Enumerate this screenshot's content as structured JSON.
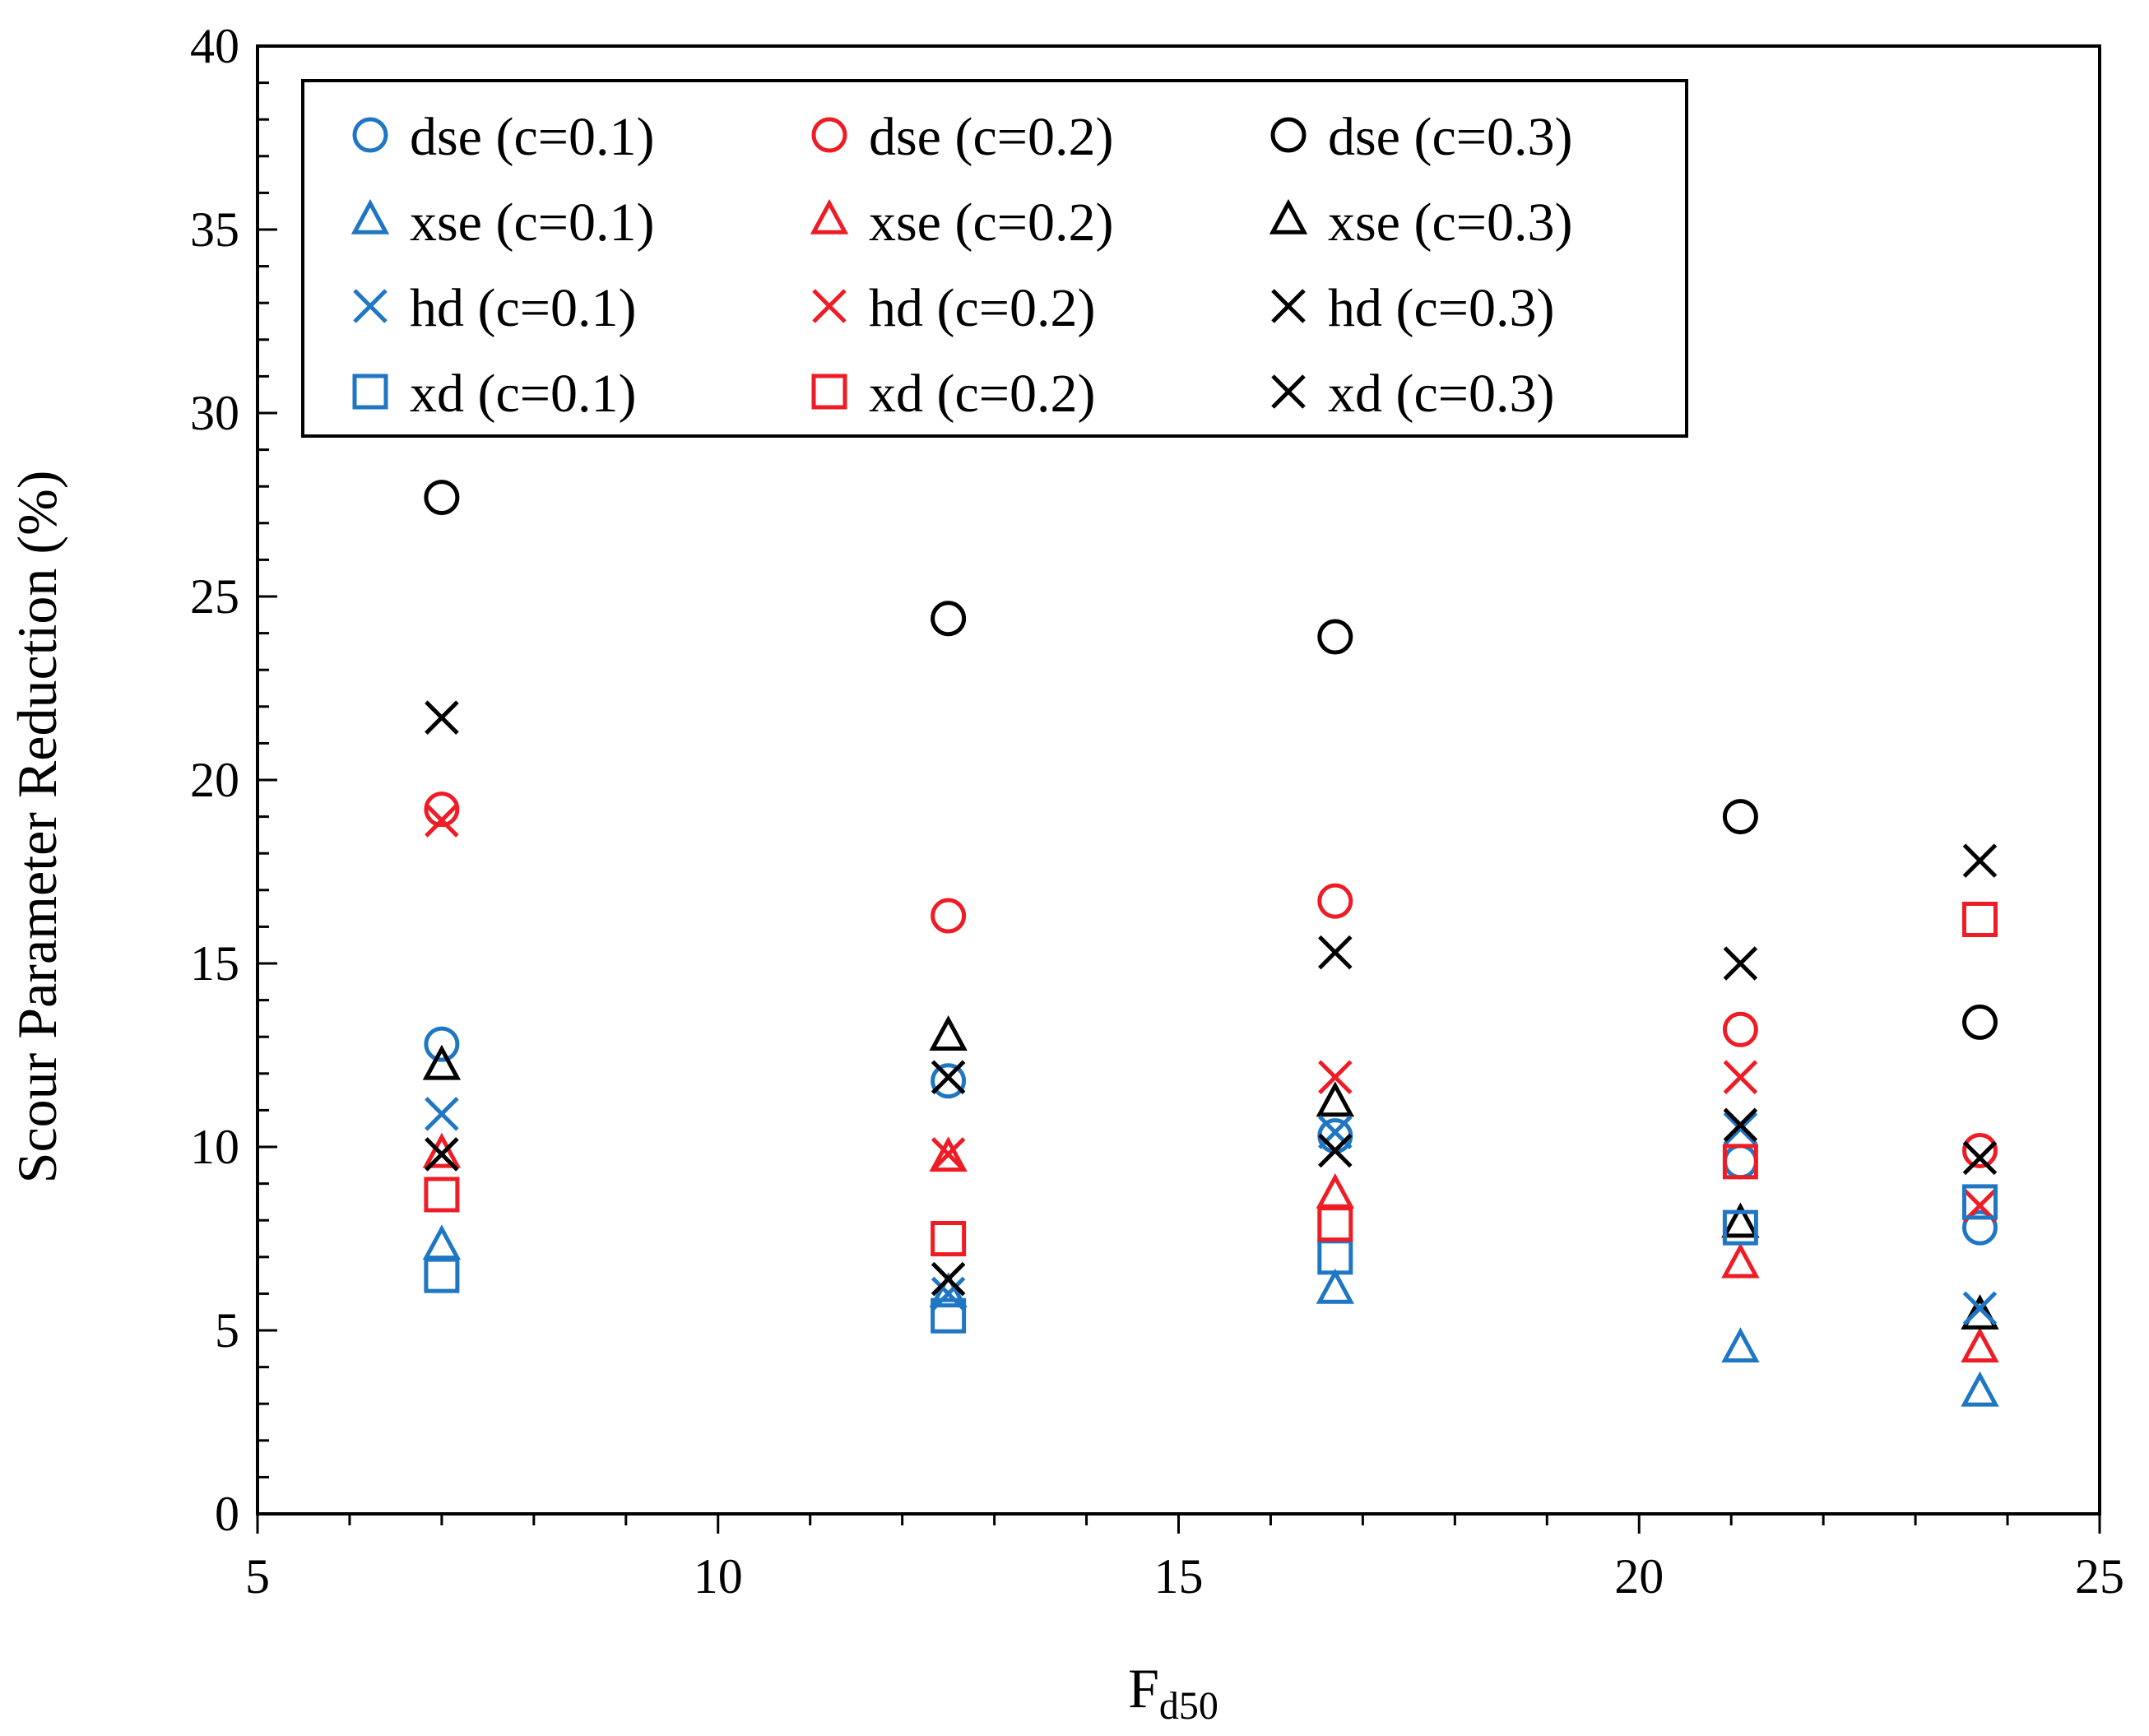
{
  "chart_data": {
    "type": "scatter",
    "title": "",
    "xlabel": "F",
    "xlabel_subscript": "d50",
    "ylabel": "Scour Parameter Reduction (%)",
    "xlim": [
      5,
      25
    ],
    "ylim": [
      0,
      40
    ],
    "xticks": [
      "5",
      "10",
      "15",
      "20",
      "25"
    ],
    "yticks": [
      "0",
      "5",
      "10",
      "15",
      "20",
      "25",
      "30",
      "35",
      "40"
    ],
    "grid": false,
    "legend_position": "top-left",
    "colors": {
      "c01": "#1F77C4",
      "c02": "#EE1C25",
      "c03": "#000000"
    },
    "x": [
      7.0,
      12.5,
      16.7,
      21.1,
      23.7
    ],
    "series": [
      {
        "name": "dse (c=0.1)",
        "marker": "circle",
        "color": "#1F77C4",
        "values": [
          12.8,
          11.8,
          10.3,
          9.6,
          7.8
        ]
      },
      {
        "name": "dse (c=0.2)",
        "marker": "circle",
        "color": "#EE1C25",
        "values": [
          19.2,
          16.3,
          16.7,
          13.2,
          9.9
        ]
      },
      {
        "name": "dse (c=0.3)",
        "marker": "circle",
        "color": "#000000",
        "values": [
          27.7,
          24.4,
          23.9,
          19.0,
          13.4
        ]
      },
      {
        "name": "xse (c=0.1)",
        "marker": "triangle",
        "color": "#1F77C4",
        "values": [
          7.3,
          6.0,
          6.1,
          4.5,
          3.3
        ]
      },
      {
        "name": "xse (c=0.2)",
        "marker": "triangle",
        "color": "#EE1C25",
        "values": [
          9.8,
          9.7,
          8.7,
          6.8,
          4.5
        ]
      },
      {
        "name": "xse (c=0.3)",
        "marker": "triangle",
        "color": "#000000",
        "values": [
          12.2,
          13.0,
          11.2,
          7.9,
          5.4
        ]
      },
      {
        "name": "hd (c=0.1)",
        "marker": "x",
        "color": "#1F77C4",
        "values": [
          10.9,
          6.0,
          10.4,
          10.5,
          5.6
        ]
      },
      {
        "name": "hd (c=0.2)",
        "marker": "x",
        "color": "#EE1C25",
        "values": [
          18.9,
          9.8,
          11.9,
          11.9,
          8.4
        ]
      },
      {
        "name": "hd (c=0.3)",
        "marker": "x",
        "color": "#000000",
        "values": [
          21.7,
          11.9,
          15.3,
          15.0,
          17.8
        ]
      },
      {
        "name": "xd (c=0.1)",
        "marker": "square",
        "color": "#1F77C4",
        "values": [
          6.5,
          5.4,
          7.0,
          7.8,
          8.5
        ]
      },
      {
        "name": "xd (c=0.2)",
        "marker": "square",
        "color": "#EE1C25",
        "values": [
          8.7,
          7.5,
          7.9,
          9.6,
          16.2
        ]
      },
      {
        "name": "xd (c=0.3)",
        "marker": "x",
        "color": "#000000",
        "values": [
          9.8,
          6.4,
          9.9,
          10.6,
          9.7
        ]
      }
    ]
  }
}
